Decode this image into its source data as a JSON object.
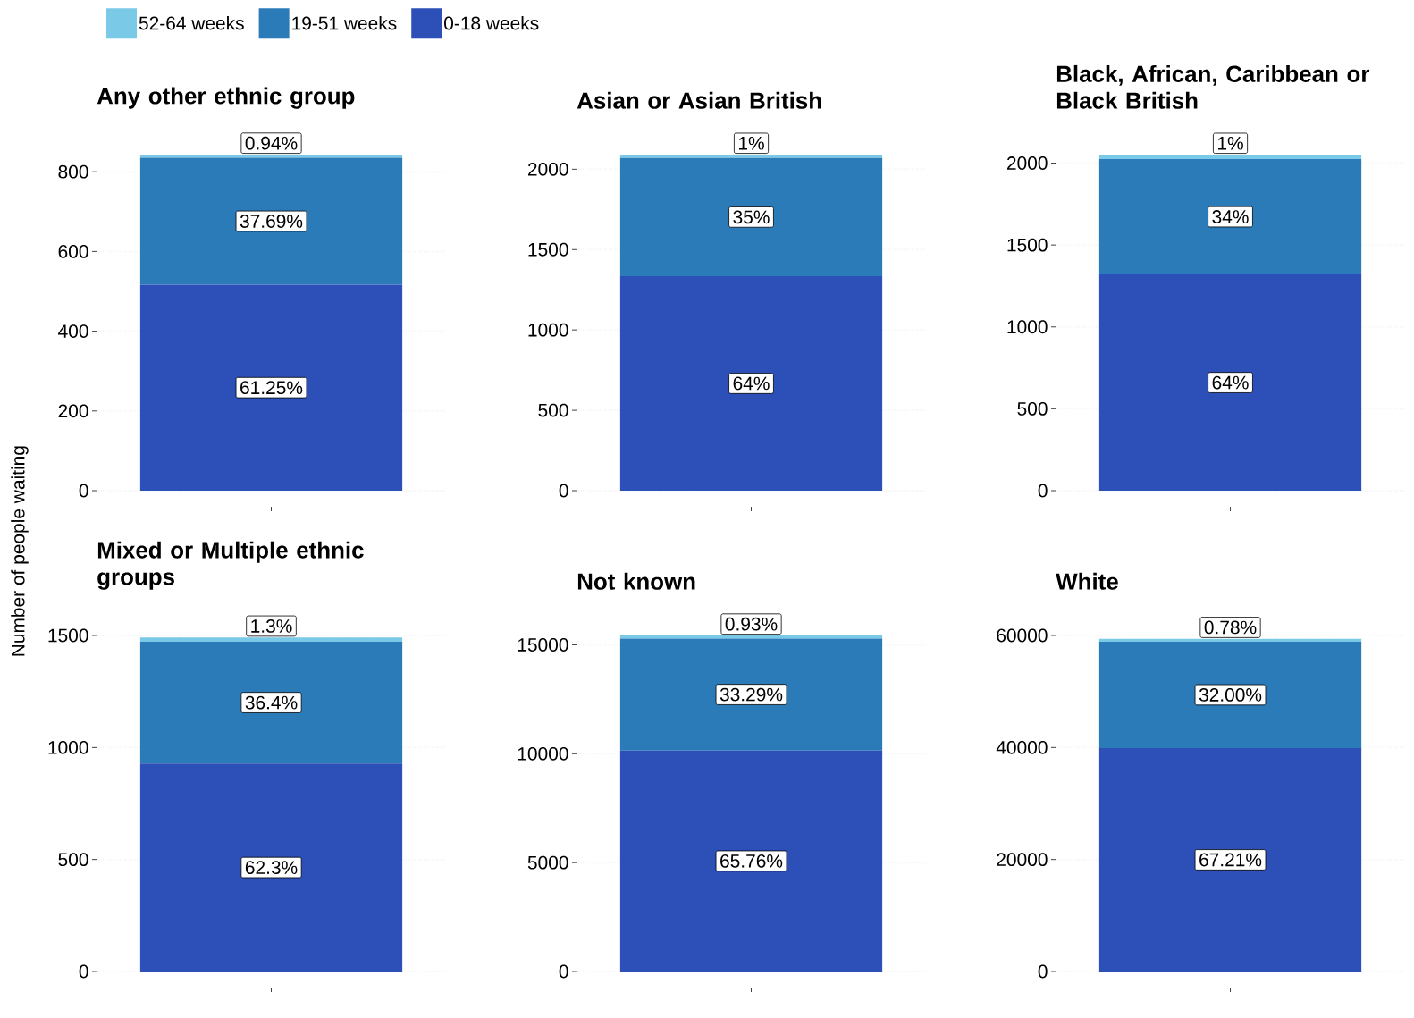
{
  "chart_data": [
    {
      "type": "bar",
      "stacked": true,
      "title": "Any other ethnic group",
      "ylabel": "Number of people waiting",
      "legend": "top",
      "grid": "y",
      "categories": [
        null
      ],
      "ylim": [
        0,
        843
      ],
      "yticks": [
        0,
        200,
        400,
        600,
        800
      ],
      "series": [
        {
          "name": "0-18 weeks",
          "color": "#2c4fb8",
          "values": [
            517
          ]
        },
        {
          "name": "19-51 weeks",
          "color": "#2b7bb9",
          "values": [
            318
          ]
        },
        {
          "name": "52-64 weeks",
          "color": "#7ac9e6",
          "values": [
            8
          ]
        }
      ],
      "annotations": [
        "61.25%",
        "37.69%",
        "0.94%"
      ]
    },
    {
      "type": "bar",
      "stacked": true,
      "title": "Asian or Asian British",
      "grid": "y",
      "categories": [
        null
      ],
      "ylim": [
        0,
        2091
      ],
      "yticks": [
        0,
        500,
        1000,
        1500,
        2000
      ],
      "series": [
        {
          "color": "#2c4fb8",
          "values": [
            1335
          ]
        },
        {
          "color": "#2b7bb9",
          "values": [
            735
          ]
        },
        {
          "color": "#7ac9e6",
          "values": [
            21
          ]
        }
      ],
      "annotations": [
        "64%",
        "35%",
        "1%"
      ]
    },
    {
      "type": "bar",
      "stacked": true,
      "title": "Black, African, Caribbean or Black British",
      "grid": "y",
      "categories": [
        null
      ],
      "ylim": [
        0,
        2052
      ],
      "yticks": [
        0,
        500,
        1000,
        1500,
        2000
      ],
      "series": [
        {
          "color": "#2c4fb8",
          "values": [
            1320
          ]
        },
        {
          "color": "#2b7bb9",
          "values": [
            705
          ]
        },
        {
          "color": "#7ac9e6",
          "values": [
            27
          ]
        }
      ],
      "annotations": [
        "64%",
        "34%",
        "1%"
      ]
    },
    {
      "type": "bar",
      "stacked": true,
      "title": "Mixed or Multiple ethnic groups",
      "grid": "y",
      "categories": [
        null
      ],
      "ylim": [
        0,
        1500
      ],
      "yticks": [
        0,
        500,
        1000,
        1500
      ],
      "series": [
        {
          "color": "#2c4fb8",
          "values": [
            929
          ]
        },
        {
          "color": "#2b7bb9",
          "values": [
            543
          ]
        },
        {
          "color": "#7ac9e6",
          "values": [
            19
          ]
        }
      ],
      "annotations": [
        "62.3%",
        "36.4%",
        "1.3%"
      ]
    },
    {
      "type": "bar",
      "stacked": true,
      "title": "Not known",
      "grid": "y",
      "categories": [
        null
      ],
      "ylim": [
        0,
        15430
      ],
      "yticks": [
        0,
        5000,
        10000,
        15000
      ],
      "series": [
        {
          "color": "#2c4fb8",
          "values": [
            10150
          ]
        },
        {
          "color": "#2b7bb9",
          "values": [
            5140
          ]
        },
        {
          "color": "#7ac9e6",
          "values": [
            140
          ]
        }
      ],
      "annotations": [
        "65.76%",
        "33.29%",
        "0.93%"
      ]
    },
    {
      "type": "bar",
      "stacked": true,
      "title": "White",
      "grid": "y",
      "categories": [
        null
      ],
      "ylim": [
        0,
        60000
      ],
      "yticks": [
        0,
        20000,
        40000,
        60000
      ],
      "series": [
        {
          "color": "#2c4fb8",
          "values": [
            39900
          ]
        },
        {
          "color": "#2b7bb9",
          "values": [
            19000
          ]
        },
        {
          "color": "#7ac9e6",
          "values": [
            500
          ]
        }
      ],
      "annotations": [
        "67.21%",
        "32.00%",
        "0.78%"
      ]
    }
  ]
}
